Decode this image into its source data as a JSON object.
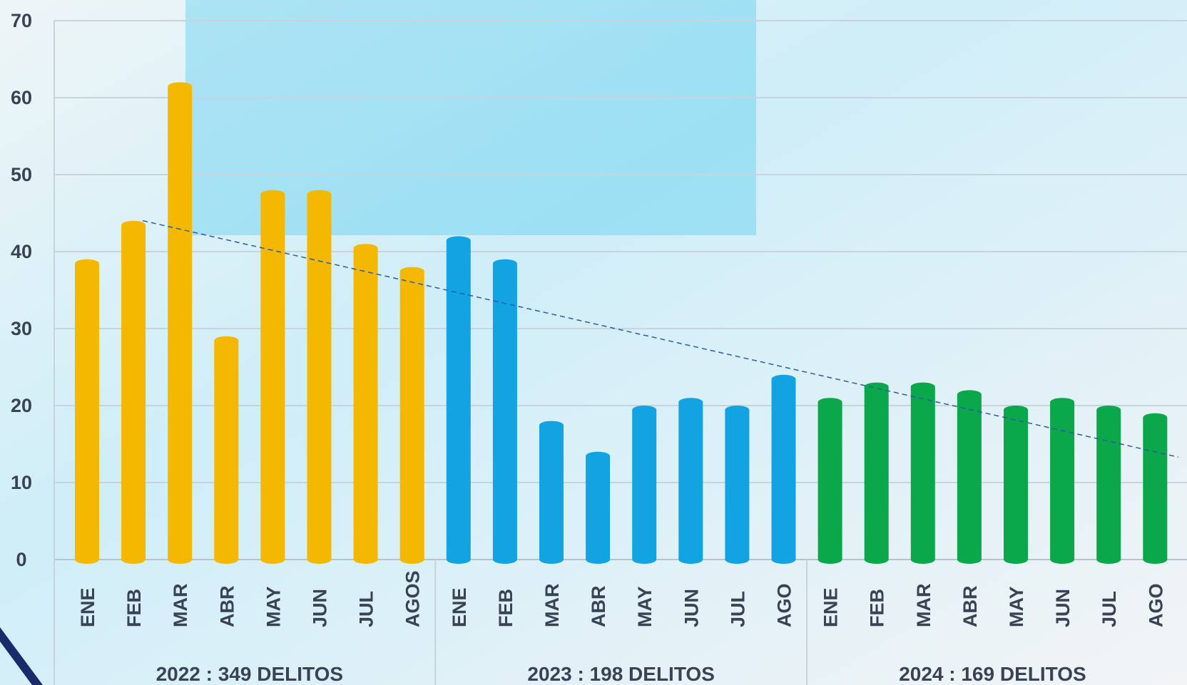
{
  "chart_data": {
    "type": "bar",
    "ylim": [
      0,
      70
    ],
    "yticks": [
      0,
      10,
      20,
      30,
      40,
      50,
      60,
      70
    ],
    "grid": true,
    "trendline": true,
    "groups": [
      {
        "label": "2022 : 349 DELITOS",
        "color": "#f5b800",
        "categories": [
          "ENE",
          "FEB",
          "MAR",
          "ABR",
          "MAY",
          "JUN",
          "JUL",
          "AGOS"
        ],
        "values": [
          39,
          44,
          62,
          29,
          48,
          48,
          41,
          38
        ]
      },
      {
        "label": "2023 : 198 DELITOS",
        "color": "#12a3e3",
        "categories": [
          "ENE",
          "FEB",
          "MAR",
          "ABR",
          "MAY",
          "JUN",
          "JUL",
          "AGO"
        ],
        "values": [
          42,
          39,
          18,
          14,
          20,
          21,
          20,
          24
        ]
      },
      {
        "label": "2024 : 169 DELITOS",
        "color": "#0aa84a",
        "categories": [
          "ENE",
          "FEB",
          "MAR",
          "ABR",
          "MAY",
          "JUN",
          "JUL",
          "AGO"
        ],
        "values": [
          21,
          23,
          23,
          22,
          20,
          21,
          20,
          19
        ]
      }
    ]
  }
}
